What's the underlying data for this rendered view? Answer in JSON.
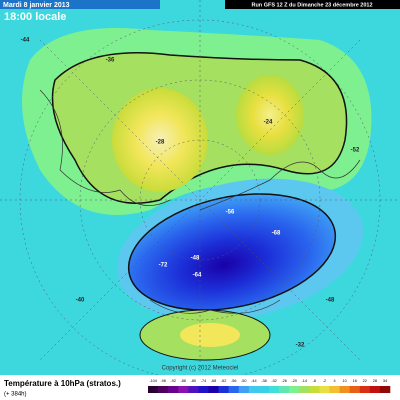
{
  "header": {
    "date": "Mardi 8 janvier 2013",
    "time": "18:00 locale",
    "run": "Run GFS 12 Z du Dimanche 23 décembre 2012"
  },
  "map": {
    "labels": [
      "-72",
      "-68",
      "-64",
      "-48",
      "-56",
      "-28",
      "-24",
      "-52",
      "-40",
      "-44",
      "-48",
      "-36",
      "-32"
    ],
    "copyright": "Copyright (c) 2012 Meteociel"
  },
  "footer": {
    "title": "Température à 10hPa (stratos.)",
    "lead": "(+ 384h)"
  },
  "scale": {
    "labels": [
      "-104",
      "-98",
      "-92",
      "-86",
      "-80",
      "-74",
      "-68",
      "-62",
      "-56",
      "-50",
      "-44",
      "-38",
      "-32",
      "-26",
      "-20",
      "-14",
      "-8",
      "-2",
      "4",
      "10",
      "16",
      "22",
      "28",
      "34"
    ]
  }
}
